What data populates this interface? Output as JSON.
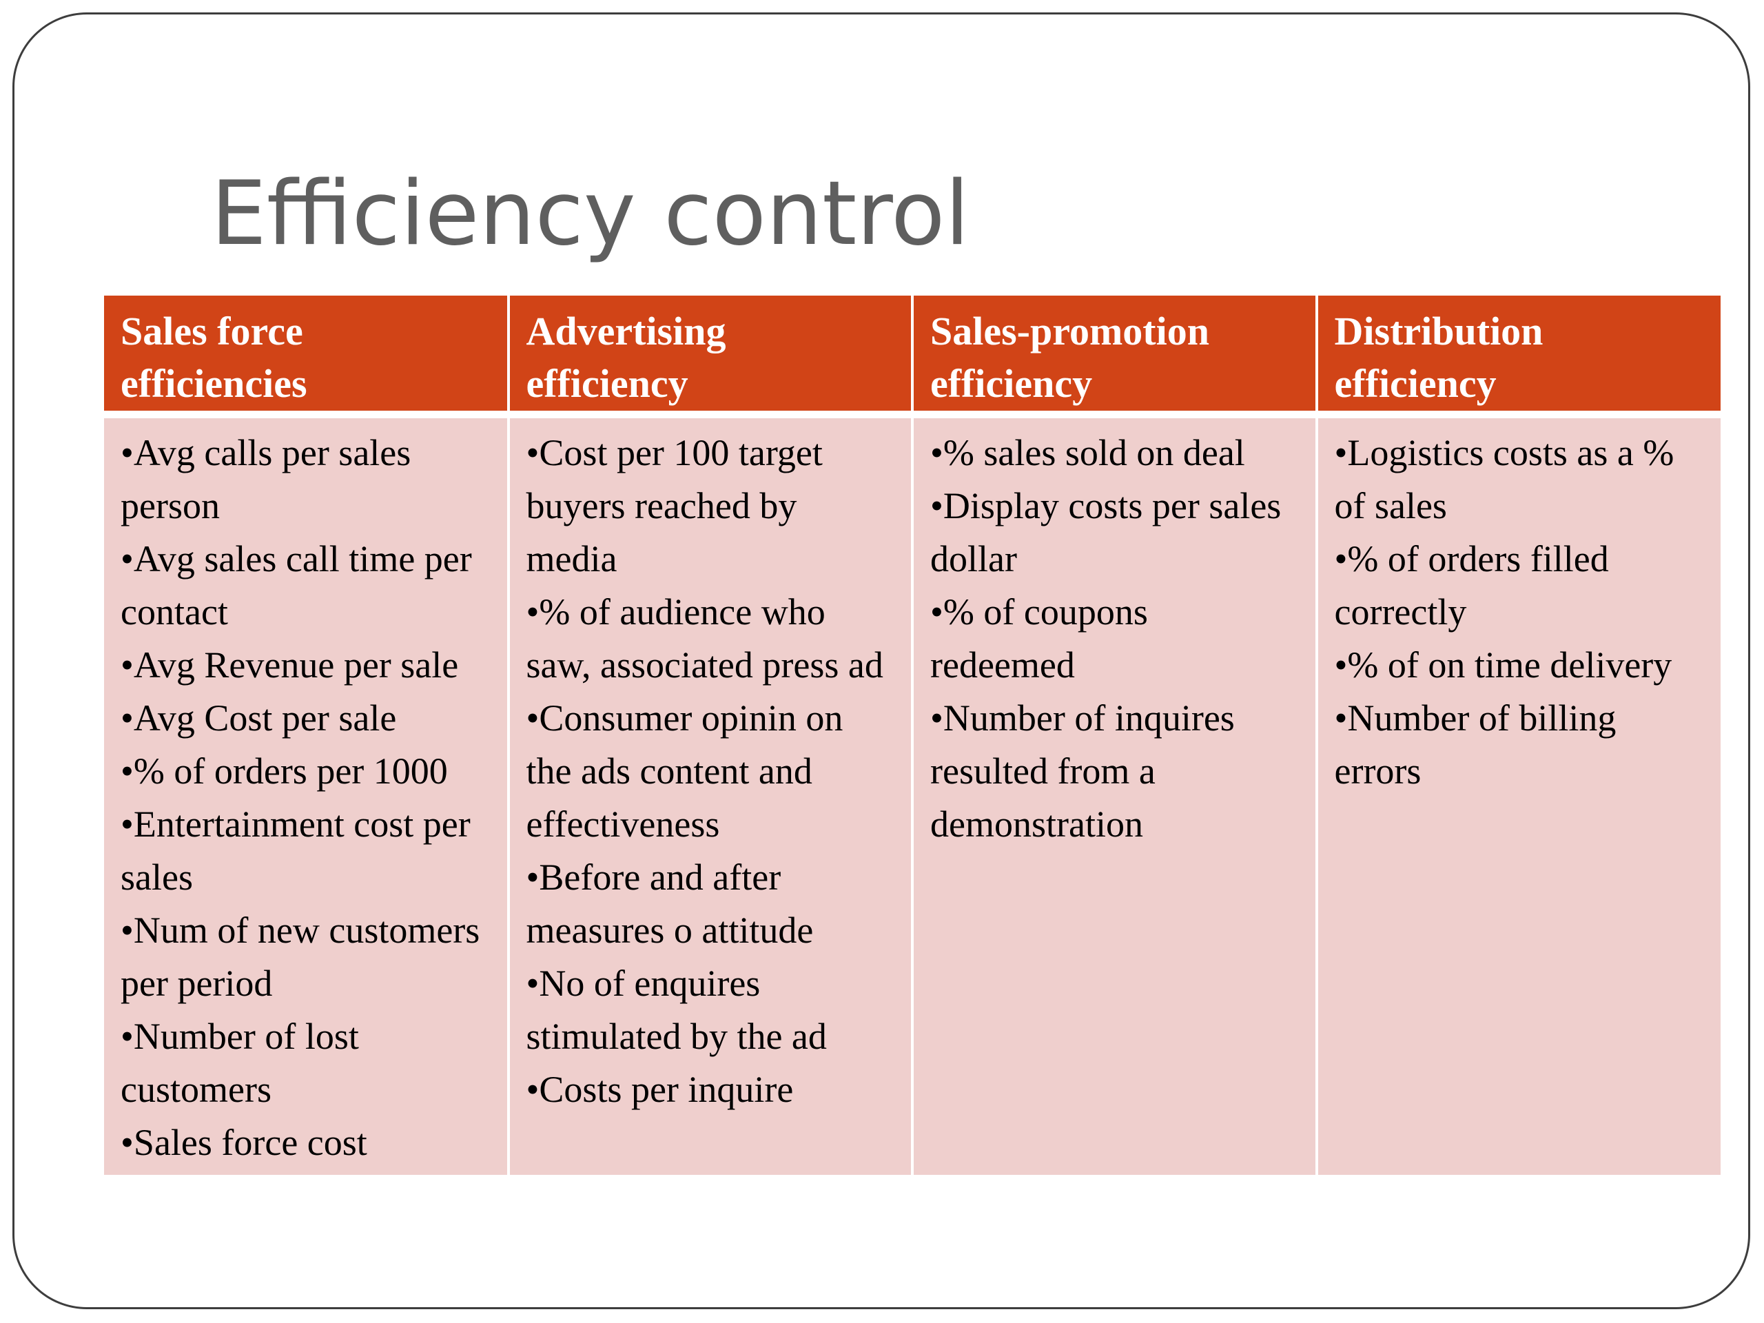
{
  "slide": {
    "title": "Efficiency control"
  },
  "table": {
    "columns": [
      {
        "header": "Sales force efficiencies",
        "items": [
          "•Avg calls per sales person",
          "•Avg sales call time per contact",
          "•Avg Revenue per sale",
          "•Avg Cost per sale",
          "•% of orders per 1000",
          "•Entertainment cost per sales",
          "•Num of new customers per period",
          "•Number of lost customers",
          "•Sales force cost"
        ]
      },
      {
        "header": "Advertising efficiency",
        "items": [
          "•Cost per 100 target buyers reached by media",
          "•% of audience who saw, associated press ad",
          "•Consumer opinin on the ads content and effectiveness",
          "•Before and after measures o attitude",
          "•No of enquires stimulated by the ad",
          "•Costs per inquire"
        ]
      },
      {
        "header": "Sales-promotion efficiency",
        "items": [
          "•% sales sold on deal",
          "•Display costs per sales dollar",
          "•% of coupons redeemed",
          "•Number of inquires resulted from a demonstration"
        ]
      },
      {
        "header": "Distribution efficiency",
        "items": [
          "•Logistics costs as a % of sales",
          "•% of orders filled correctly",
          "•% of on time delivery",
          "•Number of billing errors"
        ]
      }
    ]
  },
  "colors": {
    "header_background": "#d14417",
    "body_background": "#efcfcd",
    "title_text": "#5f5f5f"
  }
}
